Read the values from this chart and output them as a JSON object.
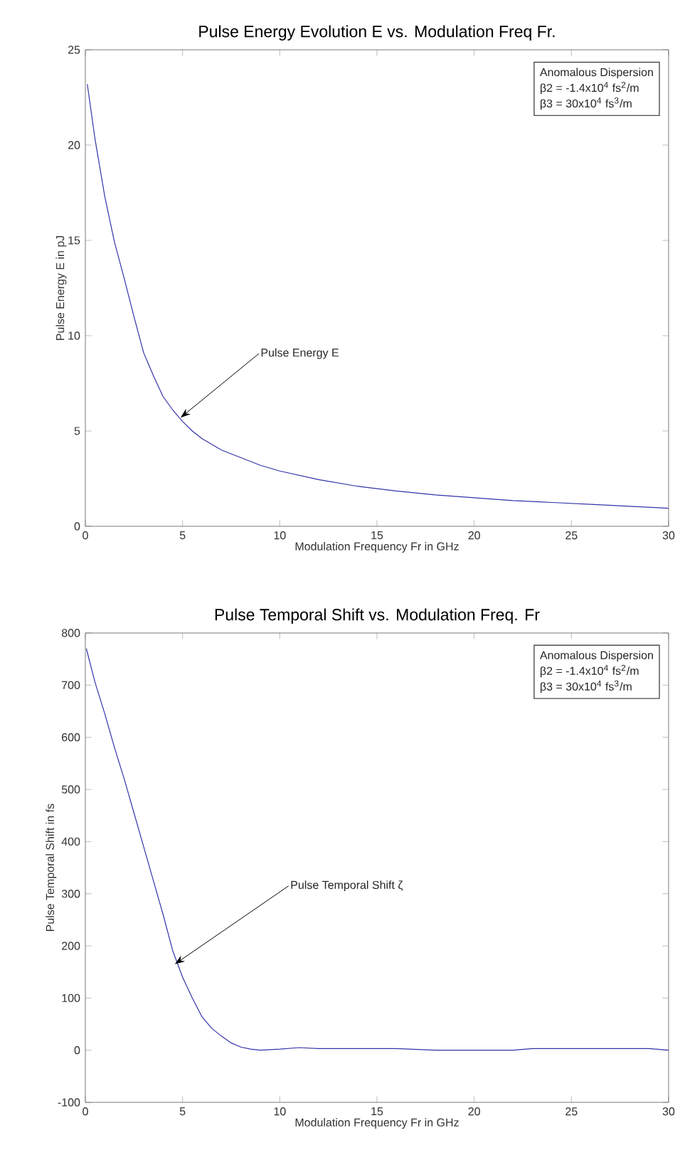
{
  "chart_data": [
    {
      "type": "line",
      "title": "Pulse Energy Evolution E vs. Modulation Freq Fr.",
      "xlabel": "Modulation Frequency Fr in GHz",
      "ylabel": "Pulse  Energy  E in  pJ",
      "x": [
        0.1,
        0.5,
        1,
        1.5,
        2,
        2.5,
        3,
        3.5,
        4,
        4.5,
        5,
        5.5,
        6,
        7,
        8,
        9,
        10,
        12,
        14,
        16,
        18,
        20,
        22,
        24,
        26,
        28,
        30
      ],
      "series": [
        {
          "color": "#3333aa",
          "values": [
            23.2,
            20.3,
            17.3,
            14.9,
            13.0,
            11.0,
            9.1,
            7.9,
            6.8,
            6.1,
            5.5,
            5.0,
            4.6,
            4.0,
            3.6,
            3.2,
            2.9,
            2.45,
            2.1,
            1.85,
            1.65,
            1.5,
            1.35,
            1.25,
            1.15,
            1.05,
            0.95
          ]
        }
      ],
      "xlim": [
        0,
        30
      ],
      "ylim": [
        0,
        25
      ],
      "xticks": [
        0,
        5,
        10,
        15,
        20,
        25,
        30
      ],
      "yticks": [
        0,
        5,
        10,
        15,
        20,
        25
      ],
      "grid": false,
      "marker": "none",
      "line_style": "solid",
      "annotations": [
        "Anomalous Dispersion",
        "β2 = -1.4x10$^{4}$ fs$^{2}$/m",
        "β3 = 30x10$^{4}$  fs$^{3}$/m",
        {
          "text": "Pulse Energy  E",
          "x": 4.9,
          "y": 5.7
        }
      ]
    },
    {
      "type": "line",
      "title": "Pulse Temporal Shift  vs. Modulation Freq.  Fr",
      "xlabel": "Modulation Frequency Fr in GHz",
      "ylabel": "Pulse  Temporal  Shift  in fs",
      "x": [
        0.05,
        0.5,
        1,
        1.5,
        2,
        2.5,
        3,
        3.5,
        4,
        4.5,
        5,
        5.5,
        6,
        6.5,
        7,
        7.5,
        8,
        8.5,
        9,
        10,
        11,
        12,
        14,
        16,
        18,
        20,
        22,
        23,
        25,
        27,
        29,
        30
      ],
      "series": [
        {
          "color": "#3333aa",
          "values": [
            770,
            705,
            645,
            580,
            520,
            455,
            390,
            325,
            260,
            190,
            140,
            100,
            64,
            42,
            27,
            14,
            6,
            2,
            0,
            2,
            5,
            3,
            3,
            3,
            0,
            0,
            0,
            3,
            3,
            3,
            3,
            0
          ]
        }
      ],
      "xlim": [
        0,
        30
      ],
      "ylim": [
        -100,
        800
      ],
      "xticks": [
        0,
        5,
        10,
        15,
        20,
        25,
        30
      ],
      "yticks": [
        -100,
        0,
        100,
        200,
        300,
        400,
        500,
        600,
        700,
        800
      ],
      "grid": false,
      "marker": "none",
      "line_style": "solid",
      "annotations": [
        "Anomalous Dispersion",
        "β2 = -1.4x10$^{4}$ fs$^{2}$/m",
        "β3 = 30x10$^{4}$  fs$^{3}$/m",
        {
          "text": "Pulse Temporal Shift ζ",
          "x": 4.6,
          "y": 165
        }
      ]
    }
  ]
}
